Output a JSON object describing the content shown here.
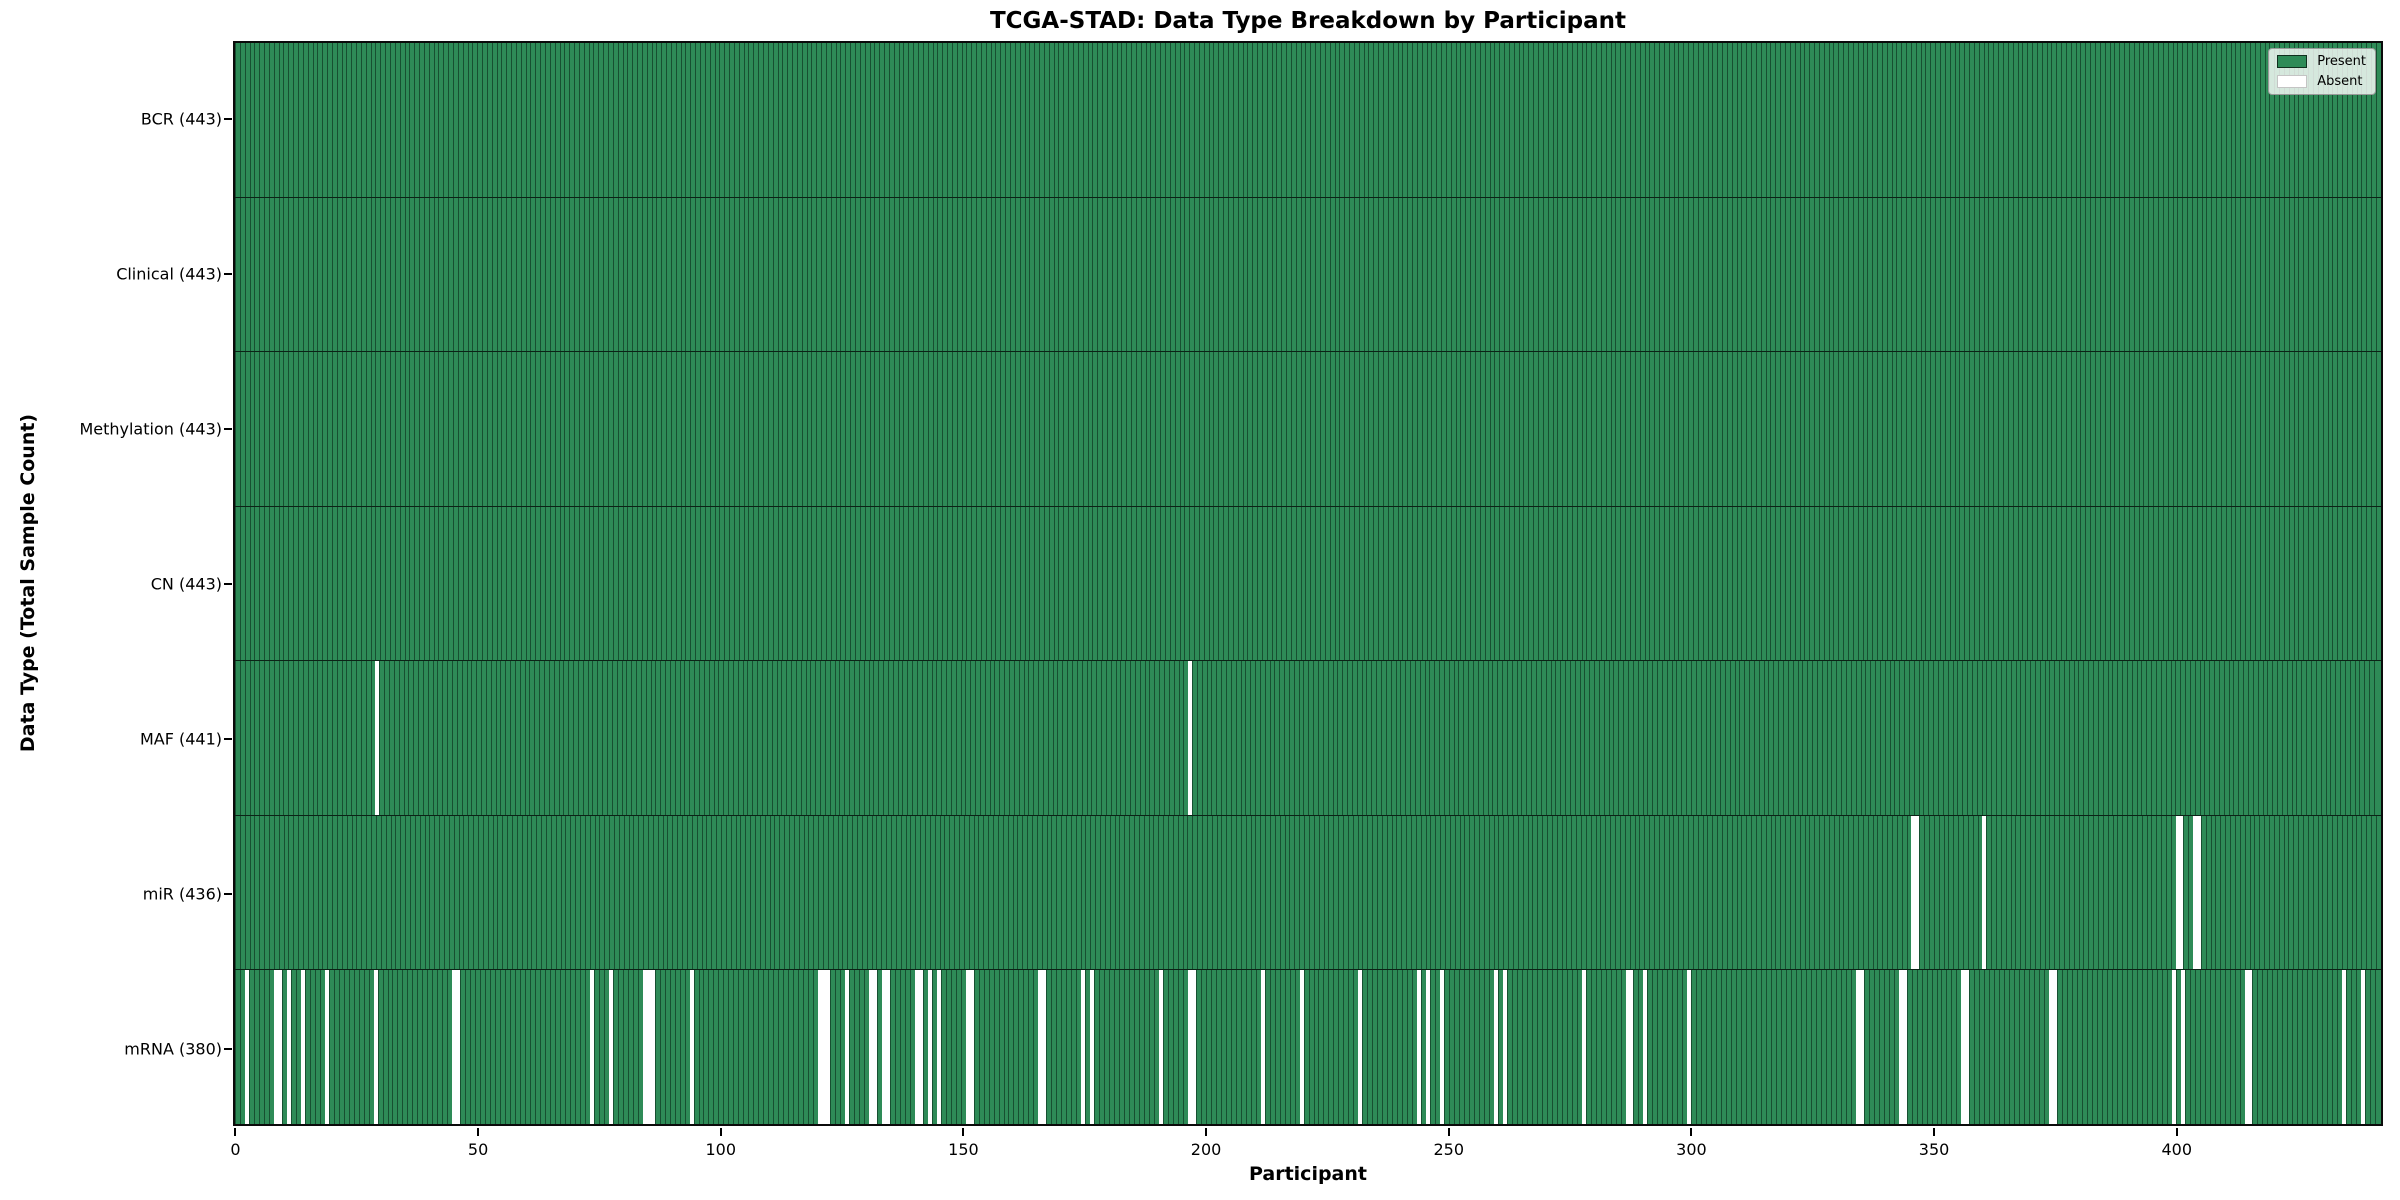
{
  "title": "TCGA-STAD: Data Type Breakdown by Participant",
  "xlabel": "Participant",
  "ylabel": "Data Type (Total Sample Count)",
  "legend": {
    "present_label": "Present",
    "absent_label": "Absent",
    "position": "upper right"
  },
  "colors": {
    "present": "#2e8b57",
    "absent": "#ffffff",
    "cell_edge": "rgba(0,22,11,0.5)",
    "plot_border": "#0b0b0b"
  },
  "chart_data": {
    "type": "heatmap",
    "title": "TCGA-STAD: Data Type Breakdown by Participant",
    "xlabel": "Participant",
    "ylabel": "Data Type (Total Sample Count)",
    "legend_entries": [
      "Present",
      "Absent"
    ],
    "legend_position": "upper right",
    "grid": false,
    "n_participants": 443,
    "x_ticks": [
      0,
      50,
      100,
      150,
      200,
      250,
      300,
      350,
      400
    ],
    "xlim": [
      -0.5,
      443.5
    ],
    "rows": [
      {
        "name": "BCR",
        "label": "BCR (443)",
        "total": 443,
        "absent_participants": []
      },
      {
        "name": "Clinical",
        "label": "Clinical (443)",
        "total": 443,
        "absent_participants": []
      },
      {
        "name": "Methylation",
        "label": "Methylation (443)",
        "total": 443,
        "absent_participants": []
      },
      {
        "name": "CN",
        "label": "CN (443)",
        "total": 443,
        "absent_participants": []
      },
      {
        "name": "MAF",
        "label": "MAF (441)",
        "total": 441,
        "absent_participants": [
          29,
          197
        ]
      },
      {
        "name": "miR",
        "label": "miR (436)",
        "total": 436,
        "absent_participants": [
          345,
          346,
          360,
          400,
          401,
          404,
          405
        ]
      },
      {
        "name": "mRNA",
        "label": "mRNA (380)",
        "total": 380,
        "absent_participants": [
          2,
          8,
          9,
          11,
          14,
          19,
          29,
          45,
          46,
          73,
          77,
          84,
          85,
          86,
          94,
          120,
          121,
          122,
          126,
          131,
          132,
          134,
          135,
          141,
          142,
          144,
          146,
          152,
          153,
          167,
          168,
          176,
          178,
          192,
          198,
          199,
          213,
          221,
          233,
          245,
          247,
          250,
          261,
          263,
          279,
          288,
          289,
          292,
          301,
          335,
          336,
          344,
          345,
          357,
          358,
          375,
          376,
          400,
          402,
          415,
          416,
          435,
          439
        ]
      }
    ]
  }
}
